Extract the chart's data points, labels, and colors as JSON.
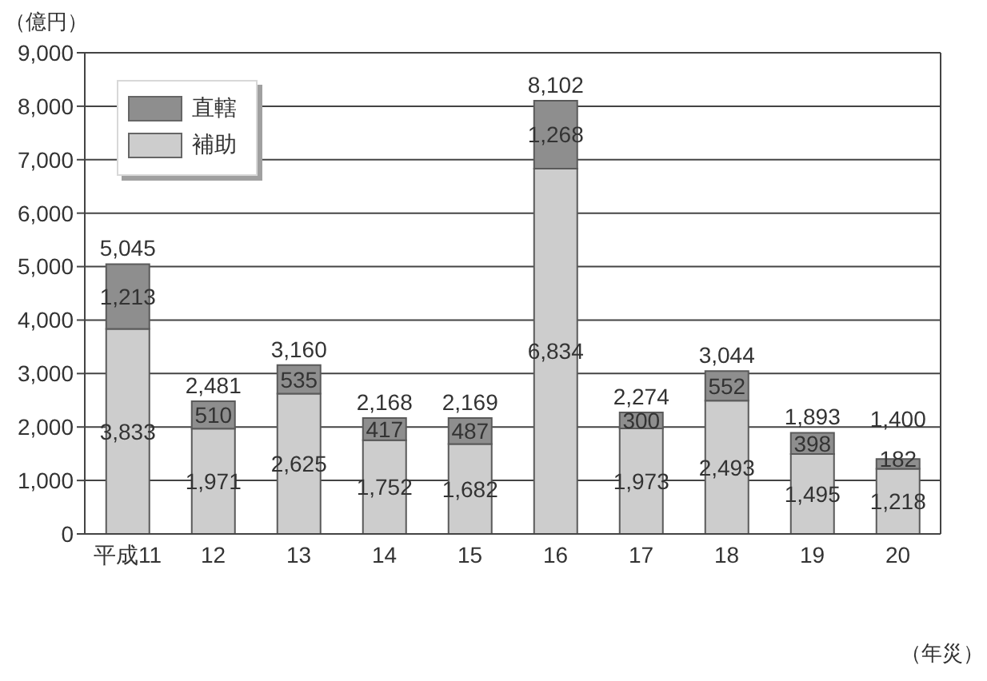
{
  "chart_data": {
    "type": "bar",
    "stacked": true,
    "ylabel": "（億円）",
    "xlabel": "（年災）",
    "categories": [
      "平成11",
      "12",
      "13",
      "14",
      "15",
      "16",
      "17",
      "18",
      "19",
      "20"
    ],
    "series": [
      {
        "name": "補助",
        "color": "#cdcdcd",
        "values": [
          3833,
          1971,
          2625,
          1752,
          1682,
          6834,
          1973,
          2493,
          1495,
          1218
        ],
        "value_labels": [
          "3,833",
          "1,971",
          "2,625",
          "1,752",
          "1,682",
          "6,834",
          "1,973",
          "2,493",
          "1,495",
          "1,218"
        ]
      },
      {
        "name": "直轄",
        "color": "#8e8e8e",
        "values": [
          1213,
          510,
          535,
          417,
          487,
          1268,
          300,
          552,
          398,
          182
        ],
        "value_labels": [
          "1,213",
          "510",
          "535",
          "417",
          "487",
          "1,268",
          "300",
          "552",
          "398",
          "182"
        ]
      }
    ],
    "totals": [
      "5,045",
      "2,481",
      "3,160",
      "2,168",
      "2,169",
      "8,102",
      "2,274",
      "3,044",
      "1,893",
      "1,400"
    ],
    "ylim": [
      0,
      9000
    ],
    "yticks": [
      0,
      {
        "value": 1000,
        "label": "1,000"
      },
      {
        "value": 2000,
        "label": "2,000"
      },
      {
        "value": 3000,
        "label": "3,000"
      },
      {
        "value": 4000,
        "label": "4,000"
      },
      {
        "value": 5000,
        "label": "5,000"
      },
      {
        "value": 6000,
        "label": "6,000"
      },
      {
        "value": 7000,
        "label": "7,000"
      },
      {
        "value": 8000,
        "label": "8,000"
      },
      {
        "value": 9000,
        "label": "9,000"
      }
    ],
    "grid": "y",
    "legend": "top left"
  }
}
